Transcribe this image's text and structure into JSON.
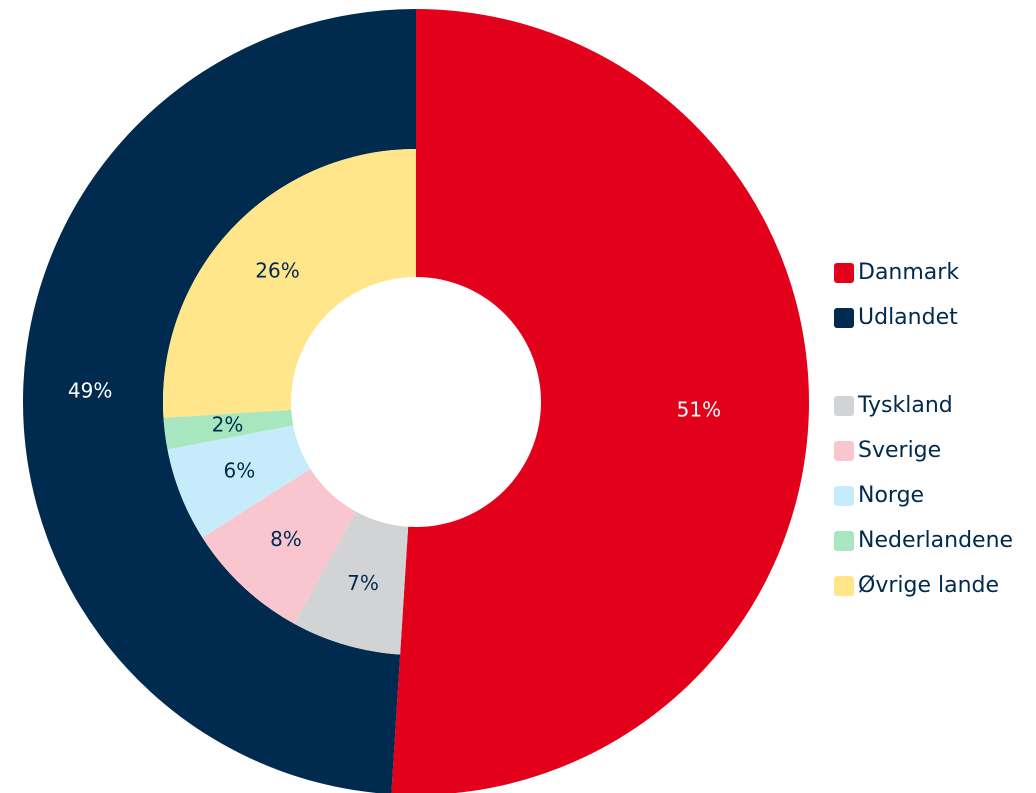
{
  "chart_data": {
    "type": "nested_donut",
    "rings": [
      {
        "categories": [
          "Danmark",
          "Udlandet"
        ],
        "values": [
          51,
          49
        ],
        "value_labels": [
          "51%",
          "49%"
        ],
        "colors": [
          "#e2001a",
          "#002a4e"
        ]
      },
      {
        "categories": [
          "Tyskland",
          "Sverige",
          "Norge",
          "Nederlandene",
          "Øvrige lande"
        ],
        "values": [
          7,
          8,
          6,
          2,
          26
        ],
        "value_labels": [
          "7%",
          "8%",
          "6%",
          "2%",
          "26%"
        ],
        "colors": [
          "#d1d3d4",
          "#f9c6cf",
          "#c6ebfa",
          "#a8e6c0",
          "#ffe68a"
        ]
      }
    ]
  }
}
